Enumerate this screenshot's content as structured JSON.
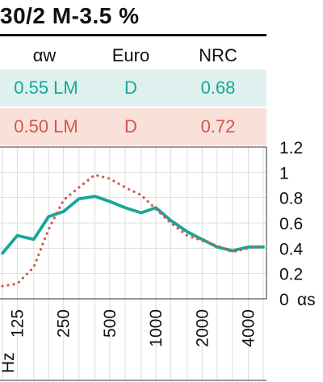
{
  "title": "30/2 M-3.5 %",
  "table": {
    "headers": [
      "αw",
      "Euro",
      "NRC"
    ],
    "rows": [
      {
        "aw": "0.55 LM",
        "euro": "D",
        "nrc": "0.68",
        "color": "#16a79a",
        "bg": "#dff1ee"
      },
      {
        "aw": "0.50 LM",
        "euro": "D",
        "nrc": "0.72",
        "color": "#d2584b",
        "bg": "#f9e1da"
      }
    ]
  },
  "chart_data": {
    "type": "line",
    "x_unit_label": "Hz",
    "x": [
      100,
      125,
      160,
      200,
      250,
      315,
      400,
      500,
      630,
      800,
      1000,
      1250,
      1600,
      2000,
      2500,
      3150,
      4000,
      5000
    ],
    "x_tick_labels": [
      "125",
      "250",
      "500",
      "1000",
      "2000",
      "4000"
    ],
    "y_ticks": [
      "1.2",
      "1",
      "0.8",
      "0.6",
      "0.4",
      "0.2",
      "0"
    ],
    "y_unit_label": "αs",
    "ylim": [
      0,
      1.2
    ],
    "grid": true,
    "series": [
      {
        "color": "#16a79a",
        "style": "solid",
        "values": [
          0.36,
          0.5,
          0.47,
          0.65,
          0.69,
          0.79,
          0.81,
          0.77,
          0.72,
          0.68,
          0.72,
          0.62,
          0.53,
          0.47,
          0.41,
          0.38,
          0.41,
          0.41
        ]
      },
      {
        "color": "#d2584b",
        "style": "dotted",
        "values": [
          0.1,
          0.12,
          0.25,
          0.55,
          0.78,
          0.88,
          0.98,
          0.95,
          0.88,
          0.82,
          0.71,
          0.6,
          0.5,
          0.46,
          0.42,
          0.37,
          0.4,
          0.42
        ]
      }
    ]
  }
}
